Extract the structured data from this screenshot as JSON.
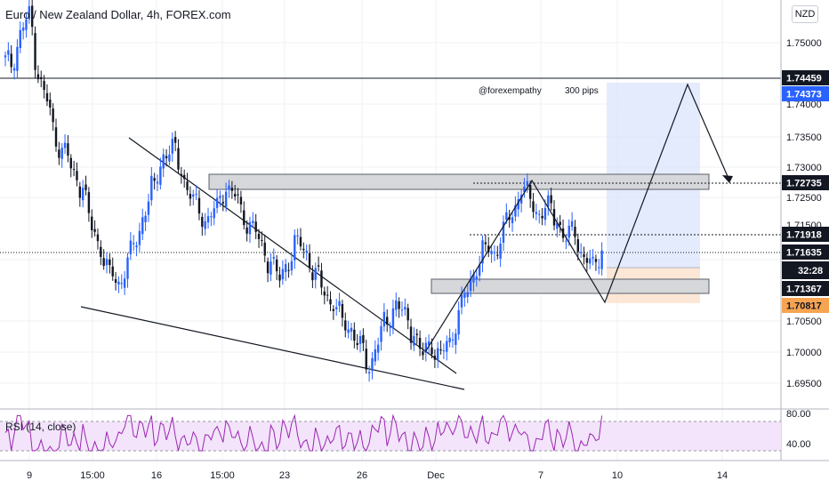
{
  "header": {
    "title": "Euro / New Zealand Dollar, 4h, FOREX.com",
    "currency": "NZD",
    "rsi_label": "RSI (14, close)"
  },
  "chart_data": {
    "type": "candlestick",
    "y_axis": {
      "range": [
        1.6915,
        1.7555
      ],
      "ticks": [
        "1.75000",
        "1.74000",
        "1.73500",
        "1.73000",
        "1.72500",
        "1.71500",
        "1.70500",
        "1.70000",
        "1.69500"
      ]
    },
    "x_axis": {
      "ticks": [
        "9",
        "15:00",
        "16",
        "15:00",
        "23",
        "26",
        "Dec",
        "7",
        "10",
        "14"
      ]
    },
    "price_labels": [
      {
        "text": "1.74459",
        "style": "dark"
      },
      {
        "text": "1.74373",
        "style": "blue"
      },
      {
        "text": "1.72735",
        "style": "dark"
      },
      {
        "text": "1.71918",
        "style": "dark"
      },
      {
        "text": "1.71635",
        "style": "dark"
      },
      {
        "text": "32:28",
        "style": "dark"
      },
      {
        "text": "1.71367",
        "style": "dark"
      },
      {
        "text": "1.70817",
        "style": "orange"
      }
    ],
    "annotations": [
      "@forexempathy",
      "300 pips"
    ],
    "rsi": {
      "ticks": [
        "80.00",
        "40.00"
      ],
      "levels": [
        70,
        30
      ]
    },
    "candles_close_path": [
      1.7455,
      1.75,
      1.753,
      1.744,
      1.74,
      1.734,
      1.732,
      1.728,
      1.726,
      1.72,
      1.717,
      1.713,
      1.711,
      1.714,
      1.718,
      1.723,
      1.727,
      1.731,
      1.732,
      1.729,
      1.725,
      1.723,
      1.721,
      1.723,
      1.726,
      1.725,
      1.722,
      1.72,
      1.717,
      1.714,
      1.712,
      1.715,
      1.718,
      1.716,
      1.712,
      1.71,
      1.708,
      1.706,
      1.704,
      1.701,
      1.698,
      1.702,
      1.706,
      1.708,
      1.706,
      1.703,
      1.7,
      1.702,
      1.7,
      1.702,
      1.706,
      1.71,
      1.714,
      1.717,
      1.716,
      1.719,
      1.722,
      1.726,
      1.725,
      1.722,
      1.723,
      1.721,
      1.718,
      1.72,
      1.715,
      1.714,
      1.716
    ]
  }
}
